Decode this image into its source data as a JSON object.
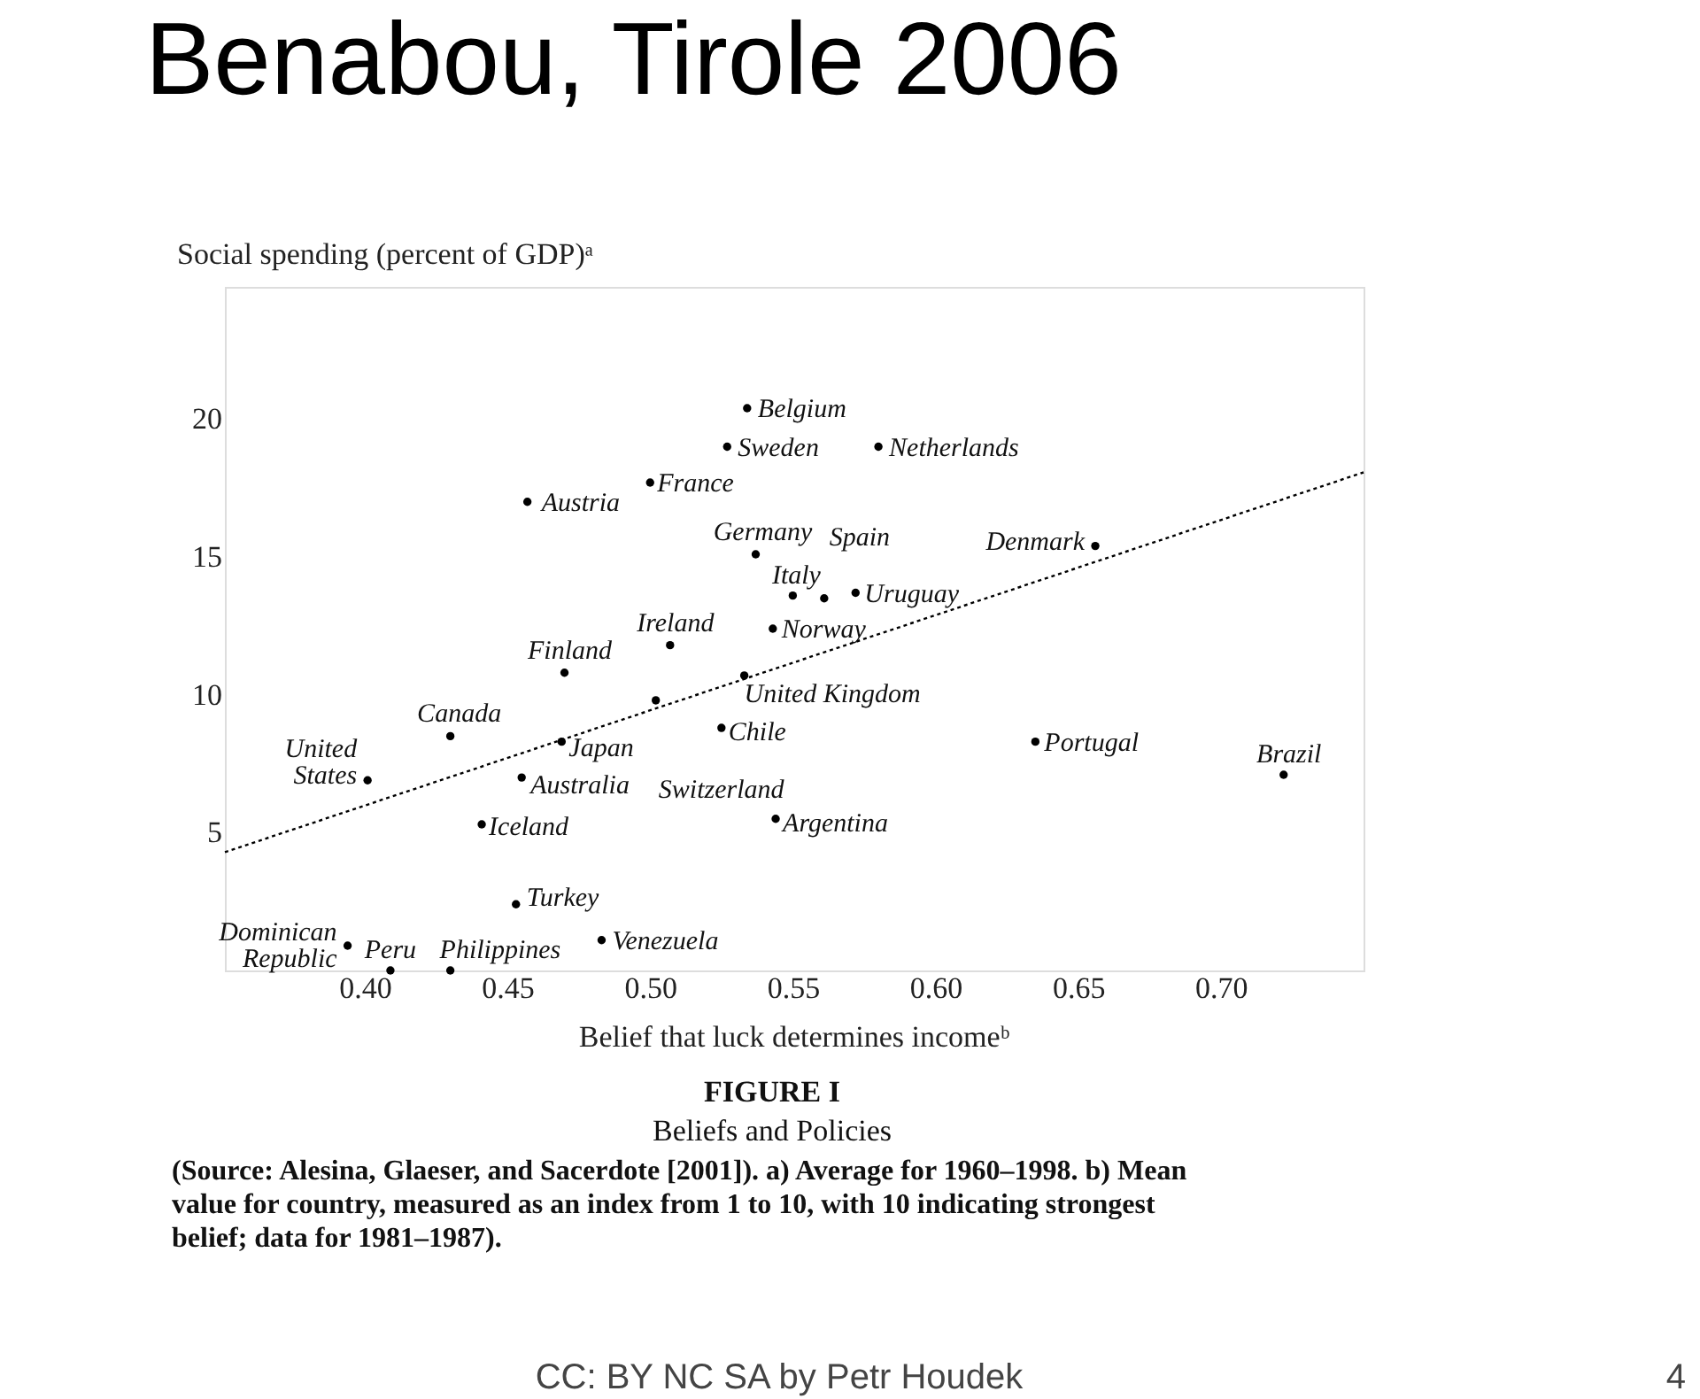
{
  "chart_data": {
    "type": "scatter",
    "title": "Benabou, Tirole 2006",
    "ylabel": "Social spending (percent of GDP)ᵃ",
    "xlabel": "Belief that luck determines incomeᵇ",
    "series": [
      {
        "color": "#000000",
        "marker": "circle",
        "x": [
          0.534,
          0.527,
          0.58,
          0.5,
          0.457,
          0.537,
          0.55,
          0.561,
          0.572,
          0.543,
          0.656,
          0.507,
          0.47,
          0.533,
          0.502,
          0.525,
          0.43,
          0.469,
          0.635,
          0.722,
          0.401,
          0.455,
          0.544,
          0.441,
          0.453,
          0.483,
          0.394,
          0.409,
          0.43
        ],
        "values": [
          20.4,
          19.0,
          19.0,
          17.7,
          17.0,
          15.1,
          13.6,
          13.5,
          13.7,
          12.4,
          15.4,
          11.8,
          10.8,
          10.7,
          9.8,
          8.8,
          8.5,
          8.3,
          8.3,
          7.1,
          6.9,
          7.0,
          5.5,
          5.3,
          2.4,
          1.1,
          0.9,
          0.0,
          0.0
        ]
      },
      {
        "type": "line",
        "color": "#000000",
        "line_style": "dotted",
        "x": [
          0.351,
          0.75
        ],
        "values": [
          4.29,
          18.07
        ]
      }
    ],
    "xlim": [
      0.351,
      0.75
    ],
    "ylim": [
      0,
      24.8
    ],
    "xticks": [
      {
        "value": 0.4,
        "label": "0.40"
      },
      {
        "value": 0.45,
        "label": "0.45"
      },
      {
        "value": 0.5,
        "label": "0.50"
      },
      {
        "value": 0.55,
        "label": "0.55"
      },
      {
        "value": 0.6,
        "label": "0.60"
      },
      {
        "value": 0.65,
        "label": "0.65"
      },
      {
        "value": 0.7,
        "label": "0.70"
      }
    ],
    "yticks": [
      5,
      10,
      15,
      20
    ],
    "grid": false,
    "legend": false,
    "annotations": [
      {
        "text": "Belgium",
        "x": 0.534,
        "y": 20.4
      },
      {
        "text": "Sweden",
        "x": 0.527,
        "y": 19.0
      },
      {
        "text": "Netherlands",
        "x": 0.58,
        "y": 19.0
      },
      {
        "text": "France",
        "x": 0.5,
        "y": 17.7
      },
      {
        "text": "Austria",
        "x": 0.457,
        "y": 17.0
      },
      {
        "text": "Germany",
        "x": 0.537,
        "y": 15.1
      },
      {
        "text": "Italy",
        "x": 0.55,
        "y": 13.6
      },
      {
        "text": "Spain",
        "x": 0.561,
        "y": 13.5
      },
      {
        "text": "Uruguay",
        "x": 0.572,
        "y": 13.7
      },
      {
        "text": "Norway",
        "x": 0.543,
        "y": 12.4
      },
      {
        "text": "Denmark",
        "x": 0.656,
        "y": 15.4
      },
      {
        "text": "Ireland",
        "x": 0.507,
        "y": 11.8
      },
      {
        "text": "Finland",
        "x": 0.47,
        "y": 10.8
      },
      {
        "text": "United Kingdom",
        "x": 0.533,
        "y": 10.7
      },
      {
        "text": "Switzerland",
        "x": 0.502,
        "y": 9.8
      },
      {
        "text": "Chile",
        "x": 0.525,
        "y": 8.8
      },
      {
        "text": "Canada",
        "x": 0.43,
        "y": 8.5
      },
      {
        "text": "Japan",
        "x": 0.469,
        "y": 8.3
      },
      {
        "text": "Portugal",
        "x": 0.635,
        "y": 8.3
      },
      {
        "text": "Brazil",
        "x": 0.722,
        "y": 7.1
      },
      {
        "text": "United States",
        "x": 0.401,
        "y": 6.9
      },
      {
        "text": "Australia",
        "x": 0.455,
        "y": 7.0
      },
      {
        "text": "Argentina",
        "x": 0.544,
        "y": 5.5
      },
      {
        "text": "Iceland",
        "x": 0.441,
        "y": 5.3
      },
      {
        "text": "Turkey",
        "x": 0.453,
        "y": 2.4
      },
      {
        "text": "Venezuela",
        "x": 0.483,
        "y": 1.1
      },
      {
        "text": "Dominican Republic",
        "x": 0.394,
        "y": 0.9
      },
      {
        "text": "Peru",
        "x": 0.409,
        "y": 0.0
      },
      {
        "text": "Philippines",
        "x": 0.43,
        "y": 0.0
      },
      "FIGURE I",
      "Beliefs and Policies",
      "(Source: Alesina, Glaeser, and Sacerdote [2001]). a) Average for 1960–1998. b) Mean value for country, measured as an index from 1 to 10, with 10 indicating strongest belief; data for 1981–1987).",
      "CC: BY NC SA by Petr Houdek",
      "4"
    ]
  }
}
